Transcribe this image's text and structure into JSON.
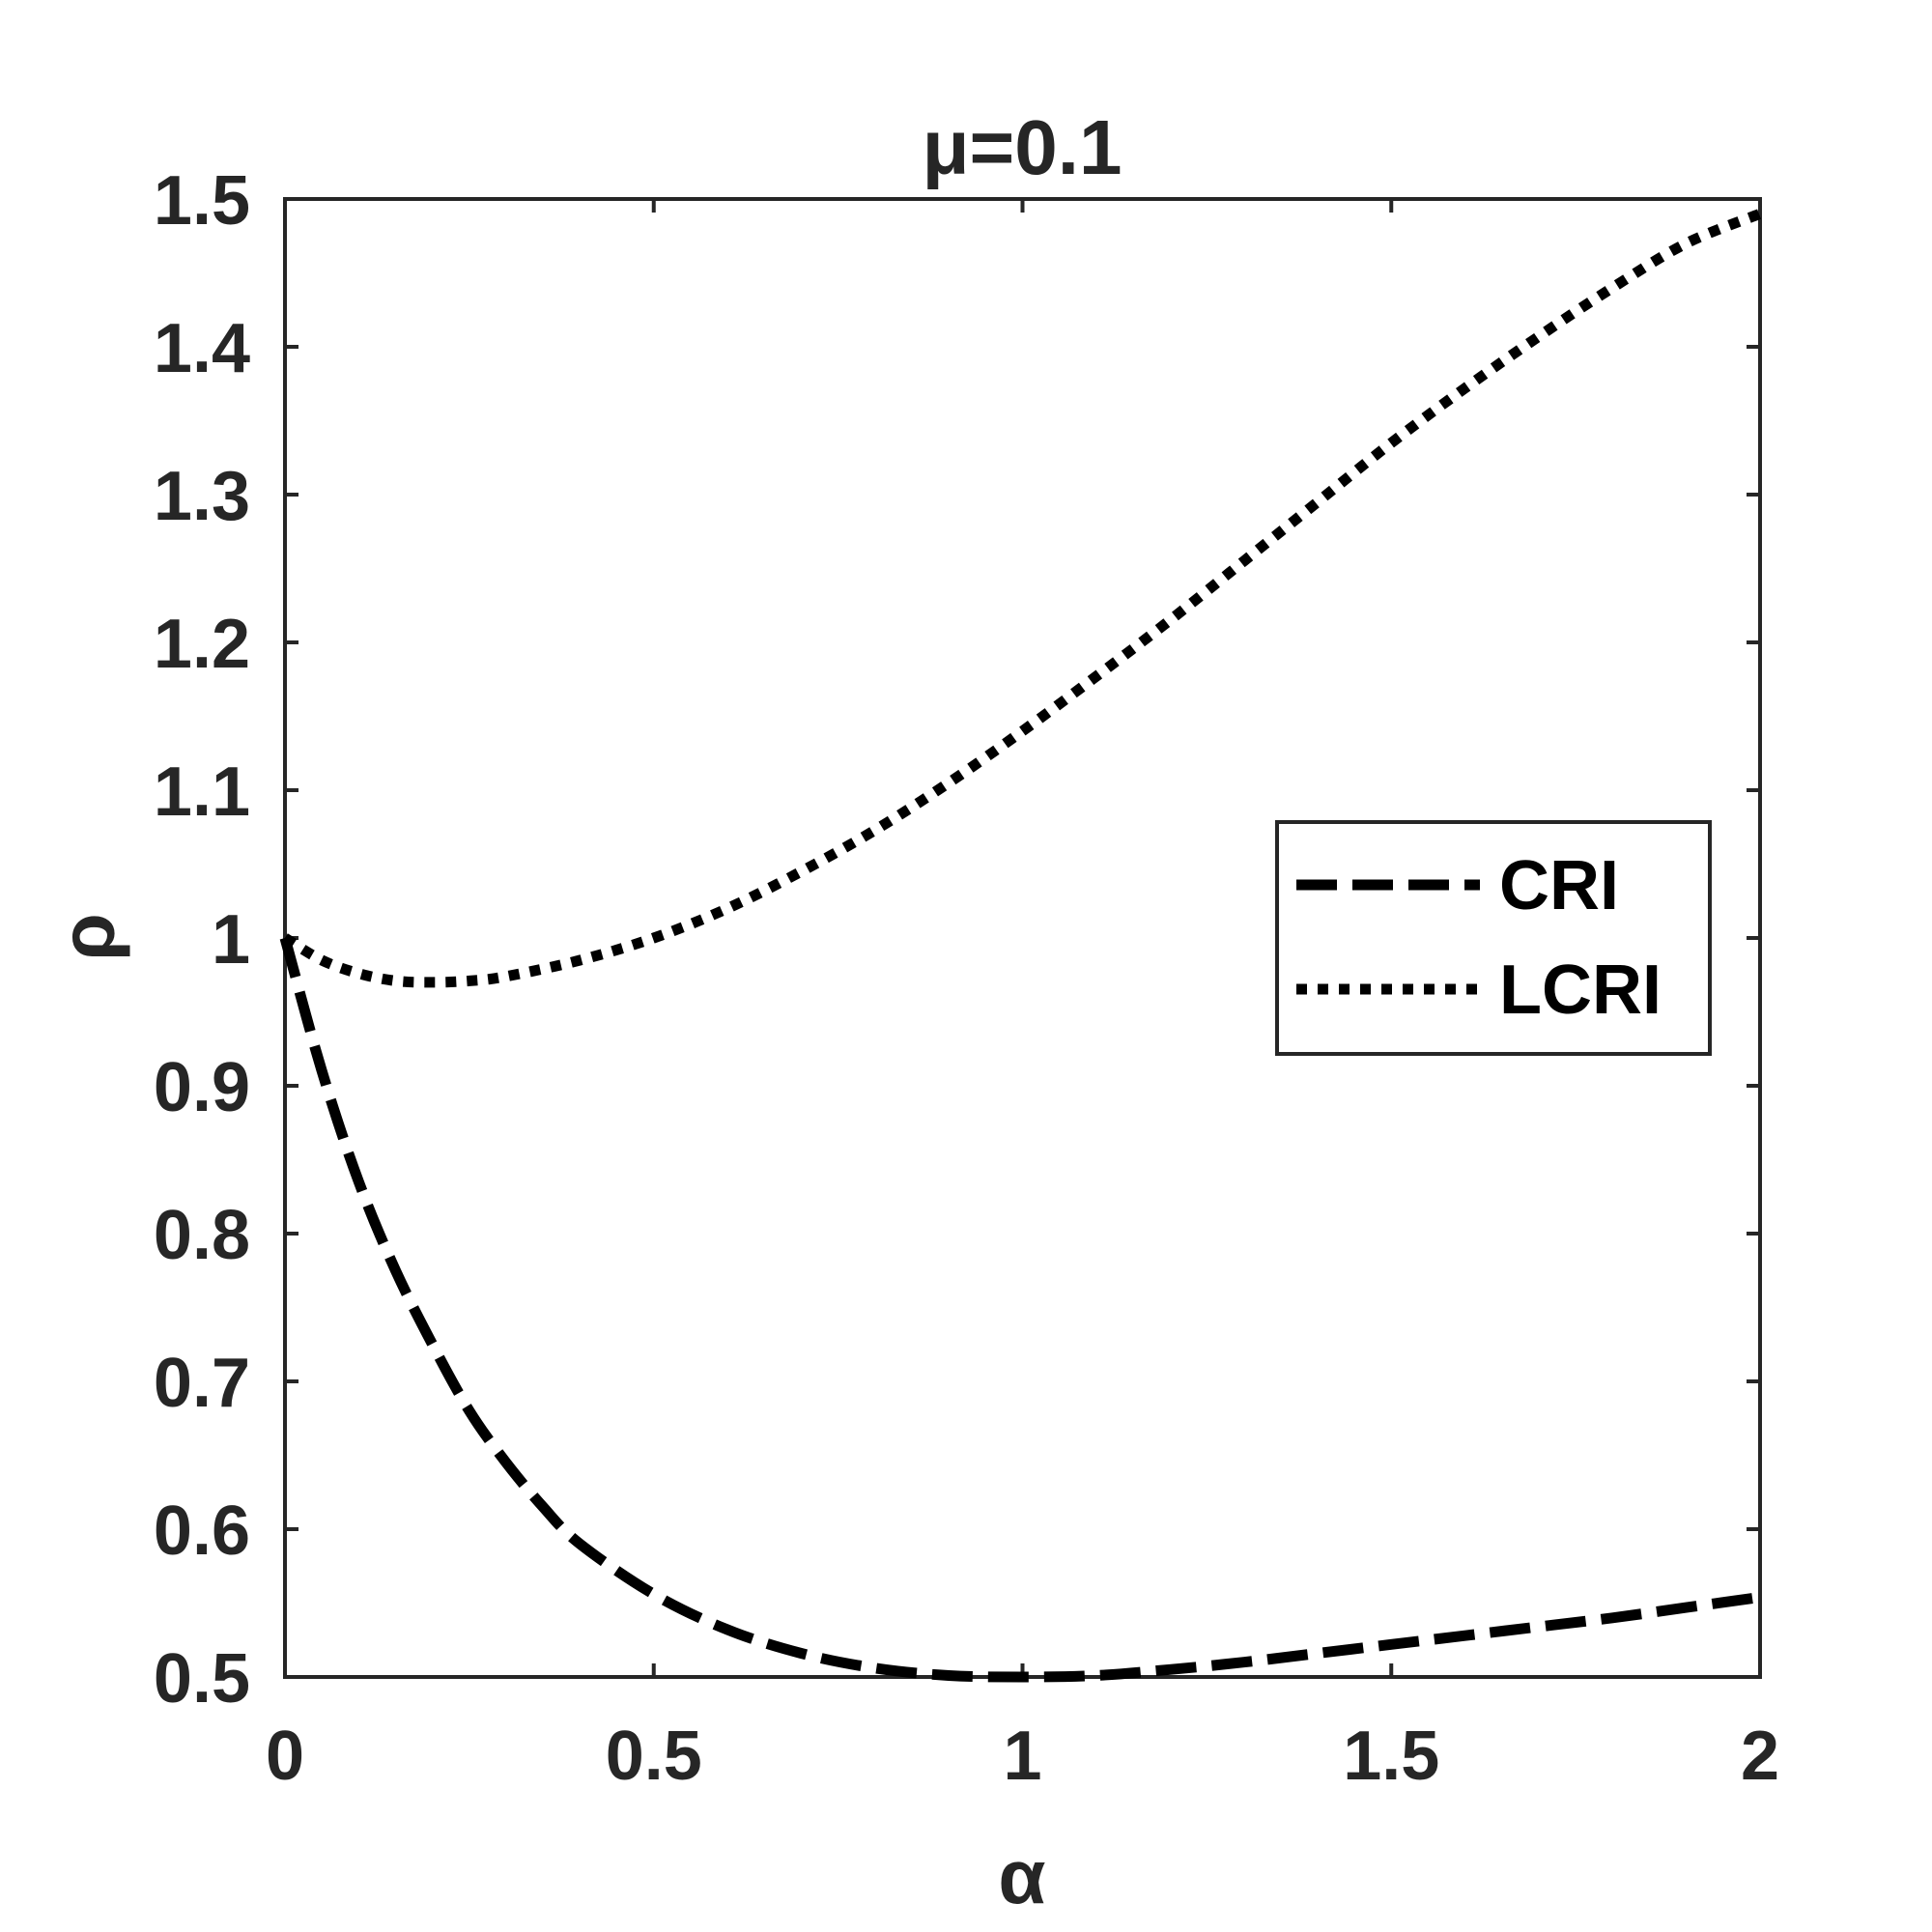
{
  "chart_data": {
    "type": "line",
    "title": "μ=0.1",
    "xlabel": "α",
    "ylabel": "ρ",
    "xlim": [
      0,
      2
    ],
    "ylim": [
      0.5,
      1.5
    ],
    "xticks": [
      0,
      0.5,
      1,
      1.5,
      2
    ],
    "xtick_labels": [
      "0",
      "0.5",
      "1",
      "1.5",
      "2"
    ],
    "yticks": [
      0.5,
      0.6,
      0.7,
      0.8,
      0.9,
      1,
      1.1,
      1.2,
      1.3,
      1.4,
      1.5
    ],
    "ytick_labels": [
      "0.5",
      "0.6",
      "0.7",
      "0.8",
      "0.9",
      "1",
      "1.1",
      "1.2",
      "1.3",
      "1.4",
      "1.5"
    ],
    "grid": false,
    "legend_position": "right",
    "colors": {
      "lines": "#000000",
      "axes": "#262626"
    },
    "series": [
      {
        "name": "CRI",
        "style": "dashed",
        "x": [
          0,
          0.05,
          0.1,
          0.15,
          0.2,
          0.25,
          0.3,
          0.35,
          0.4,
          0.5,
          0.6,
          0.7,
          0.8,
          0.9,
          1.0,
          1.1,
          1.2,
          1.3,
          1.4,
          1.5,
          1.6,
          1.7,
          1.8,
          1.9,
          2.0
        ],
        "y": [
          1.0,
          0.91,
          0.835,
          0.775,
          0.725,
          0.68,
          0.645,
          0.615,
          0.59,
          0.556,
          0.532,
          0.516,
          0.506,
          0.501,
          0.5,
          0.501,
          0.505,
          0.51,
          0.516,
          0.522,
          0.528,
          0.534,
          0.54,
          0.547,
          0.554
        ]
      },
      {
        "name": "LCRI",
        "style": "dotted",
        "x": [
          0,
          0.05,
          0.1,
          0.15,
          0.2,
          0.25,
          0.3,
          0.4,
          0.5,
          0.6,
          0.7,
          0.8,
          0.9,
          1.0,
          1.1,
          1.2,
          1.3,
          1.4,
          1.5,
          1.6,
          1.7,
          1.8,
          1.9,
          2.0
        ],
        "y": [
          1.0,
          0.985,
          0.976,
          0.971,
          0.97,
          0.971,
          0.974,
          0.985,
          1.0,
          1.02,
          1.045,
          1.073,
          1.105,
          1.14,
          1.177,
          1.215,
          1.255,
          1.295,
          1.335,
          1.372,
          1.407,
          1.44,
          1.47,
          1.49
        ]
      }
    ]
  }
}
